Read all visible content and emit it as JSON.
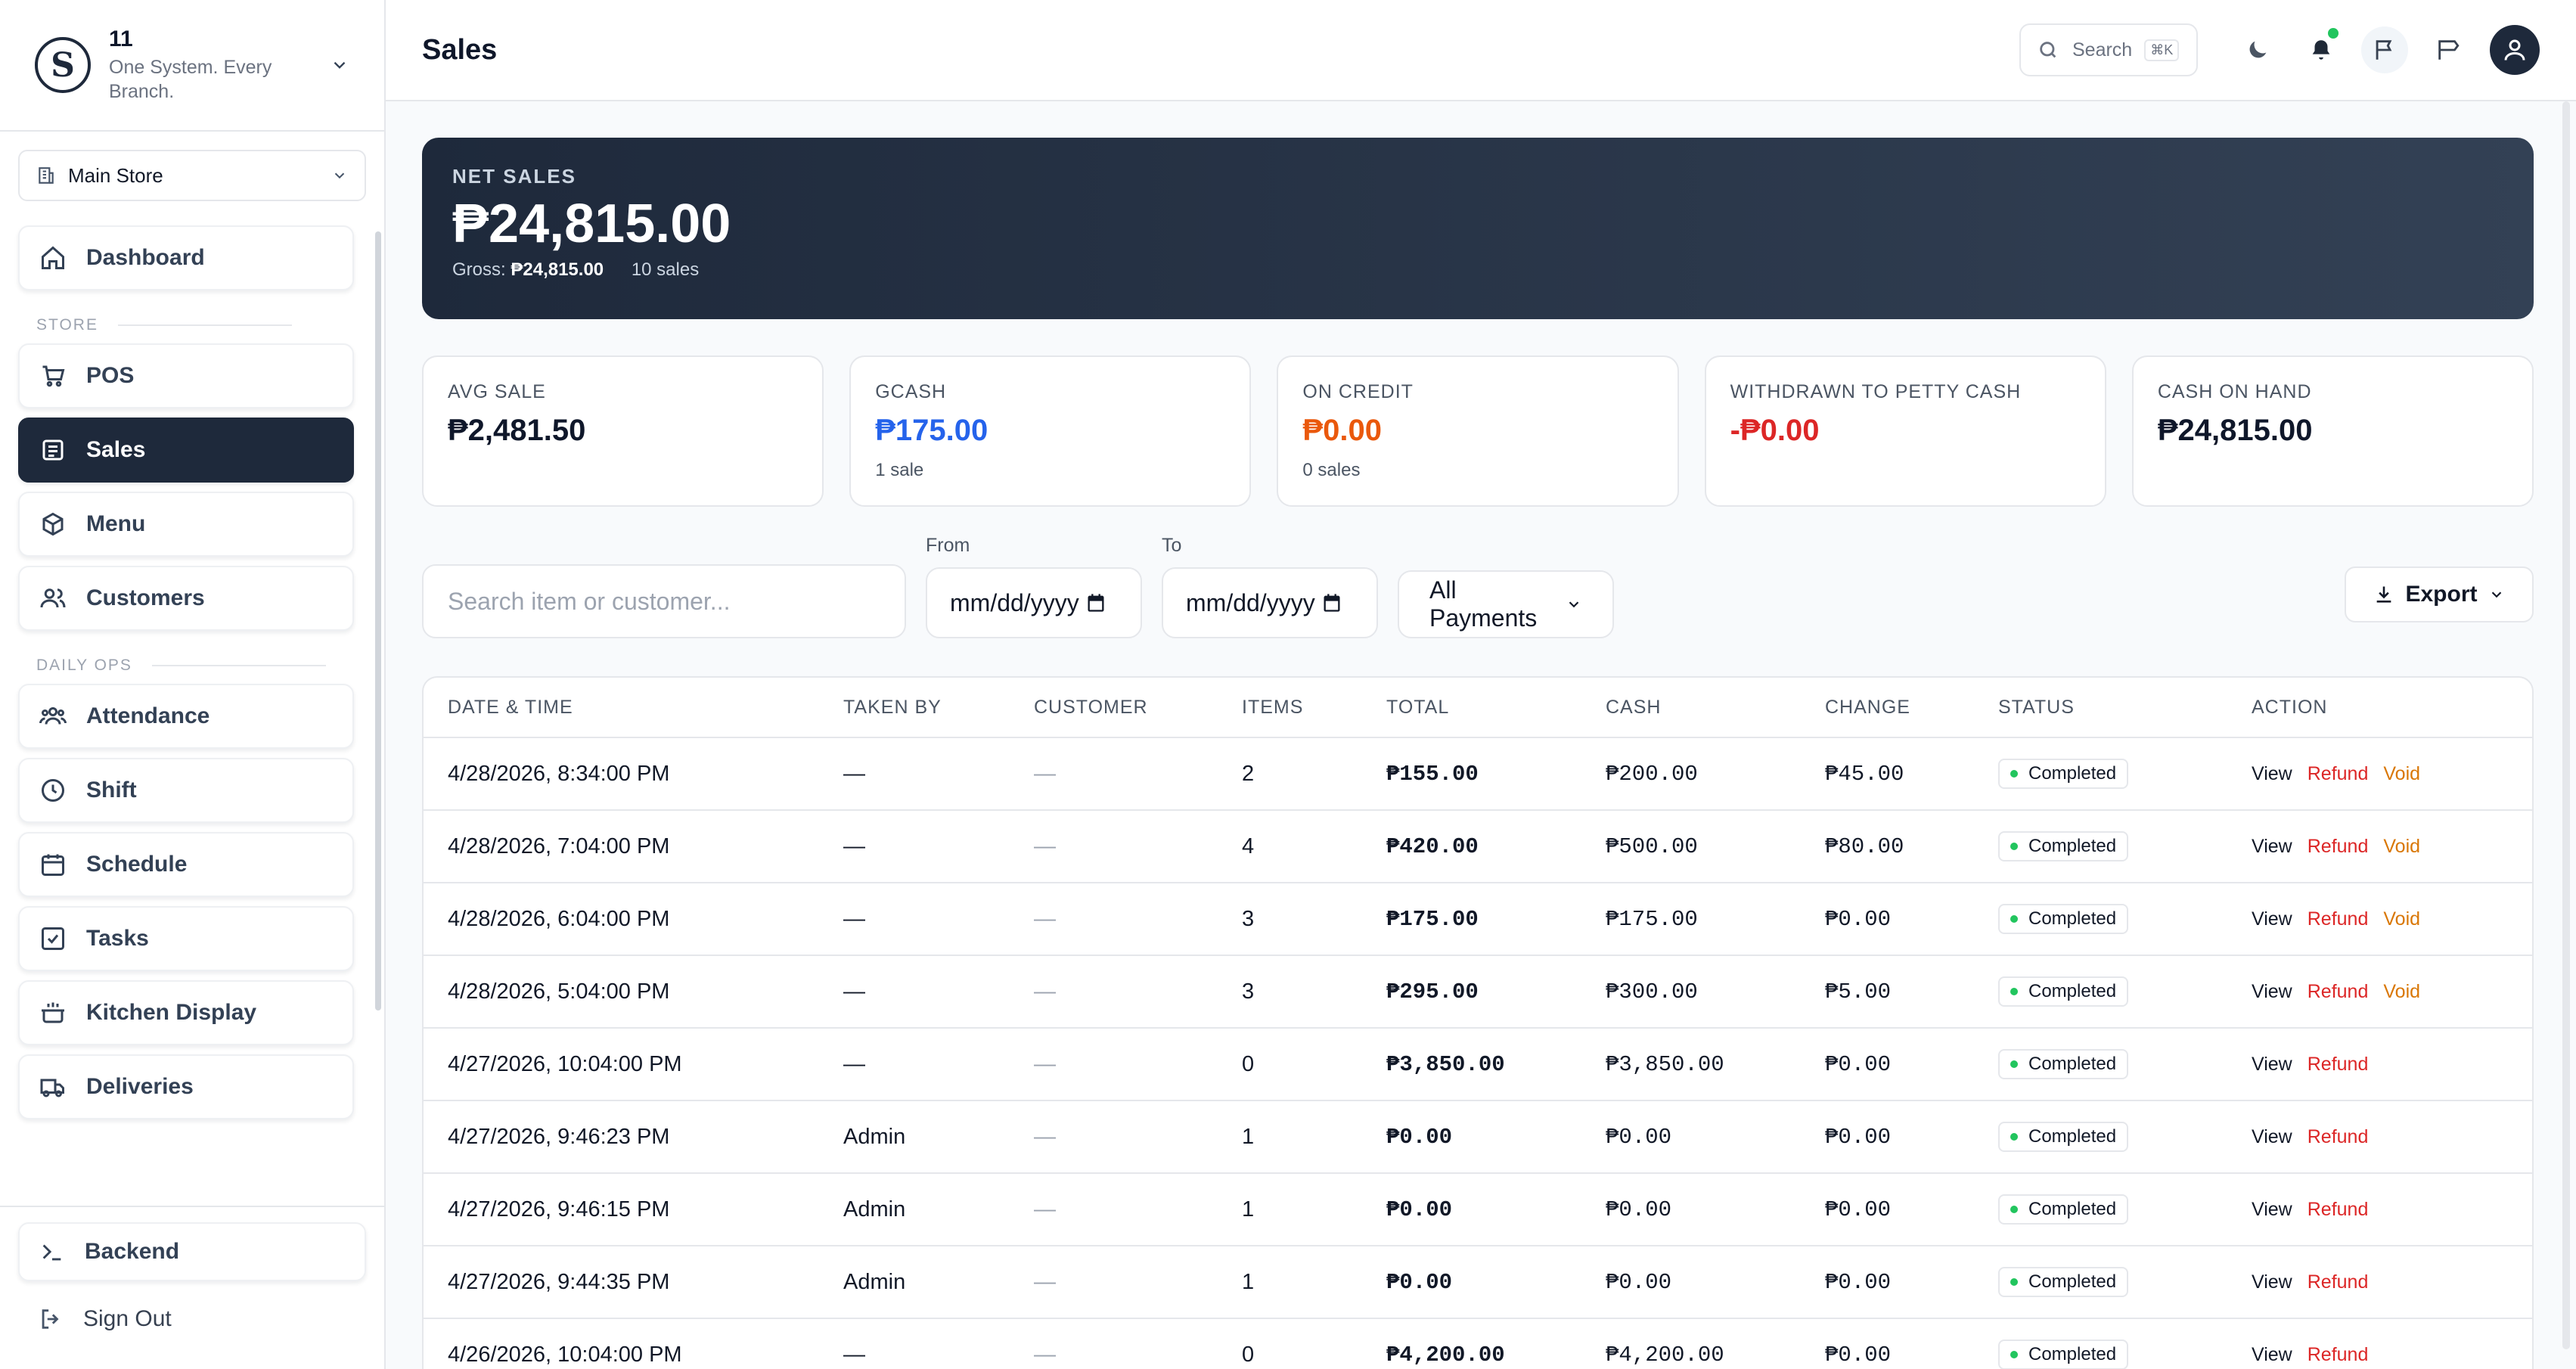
{
  "brand": {
    "name": "11",
    "tagline": "One System. Every Branch.",
    "logo_letter": "S"
  },
  "store": {
    "selected": "Main Store"
  },
  "nav": {
    "dashboard": "Dashboard",
    "store_section": "STORE",
    "pos": "POS",
    "sales": "Sales",
    "menu": "Menu",
    "customers": "Customers",
    "daily_section": "DAILY OPS",
    "attendance": "Attendance",
    "shift": "Shift",
    "schedule": "Schedule",
    "tasks": "Tasks",
    "kitchen": "Kitchen Display",
    "deliveries": "Deliveries",
    "backend": "Backend",
    "signout": "Sign Out"
  },
  "header": {
    "title": "Sales",
    "search_label": "Search",
    "search_shortcut": "⌘K"
  },
  "hero": {
    "label": "NET SALES",
    "value": "₱24,815.00",
    "gross_label": "Gross:",
    "gross_value": "₱24,815.00",
    "count": "10 sales"
  },
  "stats": [
    {
      "label": "AVG SALE",
      "value": "₱2,481.50",
      "sub": "",
      "color": "#0f172a"
    },
    {
      "label": "GCASH",
      "value": "₱175.00",
      "sub": "1 sale",
      "color": "#2563eb"
    },
    {
      "label": "ON CREDIT",
      "value": "₱0.00",
      "sub": "0 sales",
      "color": "#ea580c"
    },
    {
      "label": "WITHDRAWN TO PETTY CASH",
      "value": "-₱0.00",
      "sub": "",
      "color": "#dc2626"
    },
    {
      "label": "CASH ON HAND",
      "value": "₱24,815.00",
      "sub": "",
      "color": "#0f172a"
    }
  ],
  "filters": {
    "search_placeholder": "Search item or customer...",
    "from_label": "From",
    "to_label": "To",
    "date_placeholder": "mm/dd/yyyy",
    "payment": "All Payments",
    "export": "Export"
  },
  "table": {
    "headers": [
      "DATE & TIME",
      "TAKEN BY",
      "CUSTOMER",
      "ITEMS",
      "TOTAL",
      "CASH",
      "CHANGE",
      "STATUS",
      "ACTION"
    ],
    "action_labels": {
      "view": "View",
      "refund": "Refund",
      "void": "Void"
    },
    "rows": [
      {
        "date": "4/28/2026, 8:34:00 PM",
        "by": "—",
        "customer": "—",
        "items": "2",
        "total": "₱155.00",
        "cash": "₱200.00",
        "change": "₱45.00",
        "status": "Completed",
        "void": true
      },
      {
        "date": "4/28/2026, 7:04:00 PM",
        "by": "—",
        "customer": "—",
        "items": "4",
        "total": "₱420.00",
        "cash": "₱500.00",
        "change": "₱80.00",
        "status": "Completed",
        "void": true
      },
      {
        "date": "4/28/2026, 6:04:00 PM",
        "by": "—",
        "customer": "—",
        "items": "3",
        "total": "₱175.00",
        "cash": "₱175.00",
        "change": "₱0.00",
        "status": "Completed",
        "void": true
      },
      {
        "date": "4/28/2026, 5:04:00 PM",
        "by": "—",
        "customer": "—",
        "items": "3",
        "total": "₱295.00",
        "cash": "₱300.00",
        "change": "₱5.00",
        "status": "Completed",
        "void": true
      },
      {
        "date": "4/27/2026, 10:04:00 PM",
        "by": "—",
        "customer": "—",
        "items": "0",
        "total": "₱3,850.00",
        "cash": "₱3,850.00",
        "change": "₱0.00",
        "status": "Completed",
        "void": false
      },
      {
        "date": "4/27/2026, 9:46:23 PM",
        "by": "Admin",
        "customer": "—",
        "items": "1",
        "total": "₱0.00",
        "cash": "₱0.00",
        "change": "₱0.00",
        "status": "Completed",
        "void": false
      },
      {
        "date": "4/27/2026, 9:46:15 PM",
        "by": "Admin",
        "customer": "—",
        "items": "1",
        "total": "₱0.00",
        "cash": "₱0.00",
        "change": "₱0.00",
        "status": "Completed",
        "void": false
      },
      {
        "date": "4/27/2026, 9:44:35 PM",
        "by": "Admin",
        "customer": "—",
        "items": "1",
        "total": "₱0.00",
        "cash": "₱0.00",
        "change": "₱0.00",
        "status": "Completed",
        "void": false
      },
      {
        "date": "4/26/2026, 10:04:00 PM",
        "by": "—",
        "customer": "—",
        "items": "0",
        "total": "₱4,200.00",
        "cash": "₱4,200.00",
        "change": "₱0.00",
        "status": "Completed",
        "void": false
      }
    ]
  }
}
